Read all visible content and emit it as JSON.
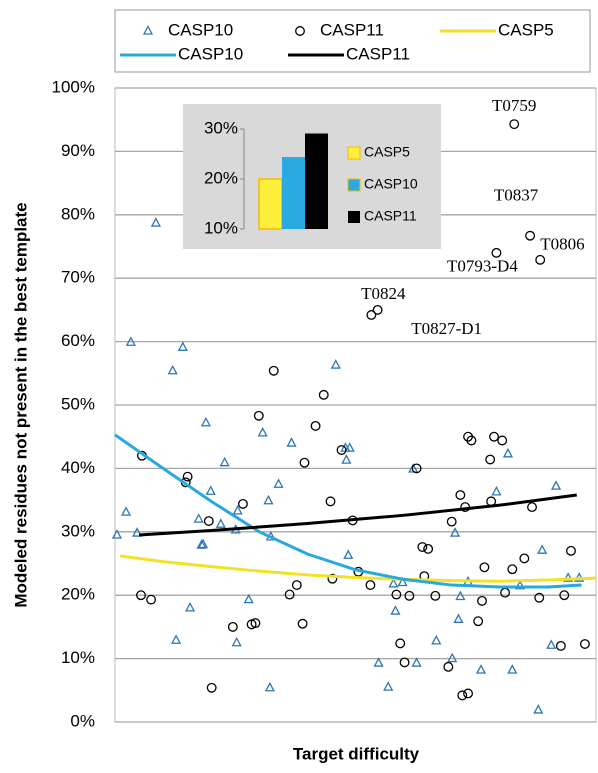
{
  "chart_data": [
    {
      "type": "scatter",
      "y_label": "Modeled residues not present in the best template",
      "x_label": "Target difficulty",
      "xlim": [
        0,
        100
      ],
      "ylim": [
        0,
        100
      ],
      "yticks": [
        {
          "value": 0,
          "label": "0%"
        },
        {
          "value": 10,
          "label": "10%"
        },
        {
          "value": 20,
          "label": "20%"
        },
        {
          "value": 30,
          "label": "30%"
        },
        {
          "value": 40,
          "label": "40%"
        },
        {
          "value": 50,
          "label": "50%"
        },
        {
          "value": 60,
          "label": "60%"
        },
        {
          "value": 70,
          "label": "70%"
        },
        {
          "value": 80,
          "label": "80%"
        },
        {
          "value": 90,
          "label": "90%"
        },
        {
          "value": 100,
          "label": "100%"
        }
      ],
      "grid": true,
      "series": [
        {
          "name": "CASP10",
          "color": "#2e75b6",
          "marker": "triangle",
          "x": [
            0.4,
            2.3,
            3.3,
            4.6,
            8.5,
            12.0,
            12.7,
            14.1,
            15.6,
            17.4,
            18.0,
            18.3,
            18.9,
            19.9,
            22.0,
            22.8,
            25.1,
            25.5,
            25.3,
            32.2,
            27.8,
            30.7,
            31.9,
            32.4,
            34.0,
            36.7,
            45.9,
            47.9,
            48.8,
            48.1,
            48.5,
            54.8,
            56.8,
            57.9,
            58.3,
            59.8,
            62.0,
            62.7,
            66.8,
            70.1,
            70.7,
            71.4,
            71.8,
            73.4,
            76.1,
            79.3,
            81.7,
            82.6,
            84.2,
            88.0,
            88.8,
            90.7,
            91.7,
            94.2,
            96.5
          ],
          "values": [
            29.5,
            33.1,
            59.9,
            29.8,
            78.7,
            55.4,
            12.9,
            59.1,
            18.0,
            32.0,
            27.9,
            28.0,
            47.2,
            36.4,
            31.2,
            40.9,
            30.3,
            33.3,
            12.5,
            5.4,
            19.3,
            45.6,
            34.9,
            29.2,
            37.5,
            44.0,
            56.3,
            43.2,
            43.2,
            41.3,
            26.3,
            9.3,
            5.5,
            21.8,
            17.5,
            22.0,
            39.9,
            9.3,
            12.8,
            10.0,
            29.8,
            16.2,
            19.8,
            22.1,
            8.2,
            36.3,
            42.3,
            8.2,
            21.5,
            1.9,
            27.1,
            12.1,
            37.2,
            22.7,
            22.7
          ]
        },
        {
          "name": "CASP11",
          "color": "#000000",
          "marker": "circle",
          "x": [
            5.6,
            5.4,
            7.5,
            14.7,
            15.1,
            19.5,
            20.1,
            24.5,
            26.6,
            29.9,
            33.0,
            28.4,
            36.3,
            37.8,
            39.0,
            39.4,
            41.7,
            43.4,
            44.8,
            45.2,
            47.1,
            49.4,
            50.6,
            53.1,
            58.5,
            59.3,
            60.2,
            61.2,
            62.7,
            63.9,
            64.3,
            65.1,
            66.6,
            69.3,
            70.0,
            71.8,
            72.8,
            73.4,
            74.1,
            75.5,
            76.3,
            76.8,
            78.0,
            78.2,
            78.8,
            80.5,
            81.1,
            82.6,
            85.1,
            86.7,
            88.2,
            92.7,
            94.8,
            97.7,
            72.2,
            73.4,
            93.4,
            29.2,
            83.0,
            86.3,
            88.4,
            79.3,
            53.3,
            54.6
          ],
          "values": [
            42.0,
            20.0,
            19.3,
            37.8,
            38.7,
            31.7,
            5.4,
            15.0,
            34.4,
            48.3,
            55.4,
            15.4,
            20.1,
            21.6,
            15.5,
            40.9,
            46.7,
            51.6,
            34.8,
            22.6,
            42.9,
            31.8,
            23.7,
            21.6,
            20.1,
            12.4,
            9.4,
            19.9,
            40.0,
            27.6,
            23.0,
            27.3,
            19.9,
            8.7,
            31.6,
            35.8,
            33.9,
            45.0,
            44.4,
            15.9,
            19.1,
            24.4,
            41.4,
            34.8,
            45.0,
            44.4,
            20.4,
            24.1,
            25.8,
            33.9,
            19.6,
            12.0,
            27.0,
            12.3,
            4.2,
            4.5,
            20.0,
            15.6,
            94.3,
            76.7,
            72.9,
            74.0,
            64.2,
            65.0
          ]
        },
        {
          "name": "CASP5",
          "color": "#f2e227",
          "style": "line",
          "x": [
            1,
            10,
            20,
            30,
            40,
            50,
            60,
            70,
            80,
            90,
            100
          ],
          "values": [
            26.2,
            25.3,
            24.5,
            23.8,
            23.2,
            22.8,
            22.5,
            22.3,
            22.2,
            22.4,
            22.7
          ]
        },
        {
          "name": "CASP10",
          "color": "#29a8e0",
          "style": "line",
          "x": [
            0,
            10,
            20,
            30,
            40,
            50,
            60,
            70,
            80,
            90,
            97
          ],
          "values": [
            45.3,
            40.0,
            34.8,
            30.0,
            26.5,
            24.0,
            22.5,
            21.6,
            21.3,
            21.3,
            21.6
          ]
        },
        {
          "name": "CASP11",
          "color": "#000000",
          "style": "line",
          "x": [
            5,
            20,
            40,
            60,
            80,
            96
          ],
          "values": [
            29.5,
            30.2,
            31.3,
            32.6,
            34.2,
            35.8
          ]
        }
      ],
      "annotations": [
        {
          "text": "T0759",
          "x": 83.0,
          "y": 94.3
        },
        {
          "text": "T0837",
          "x": 86.3,
          "y": 76.7
        },
        {
          "text": "T0806",
          "x": 88.4,
          "y": 72.9
        },
        {
          "text": "T0793-D4",
          "x": 79.3,
          "y": 74.0
        },
        {
          "text": "T0824",
          "x": 53.3,
          "y": 64.2
        },
        {
          "text": "T0827-D1",
          "x": 54.6,
          "y": 65.0
        }
      ]
    },
    {
      "type": "bar",
      "categories": [
        "CASP5",
        "CASP10",
        "CASP11"
      ],
      "values": [
        20,
        24.4,
        29.1
      ],
      "colors": [
        "#ffef3a",
        "#29abe2",
        "#000000"
      ],
      "ylim": [
        10,
        30
      ],
      "yticks": [
        {
          "value": 10,
          "label": "10%"
        },
        {
          "value": 20,
          "label": "20%"
        },
        {
          "value": 30,
          "label": "30%"
        }
      ]
    }
  ]
}
